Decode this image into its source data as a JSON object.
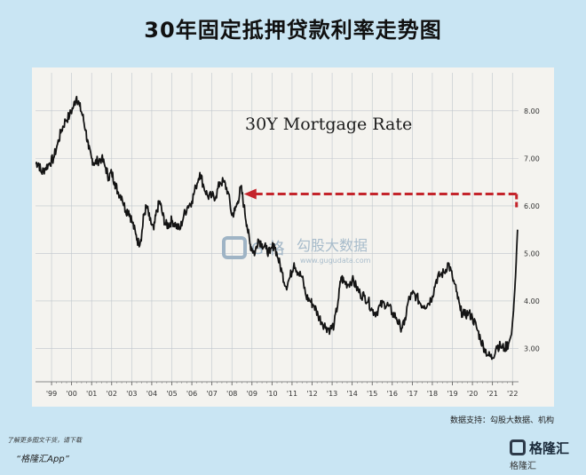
{
  "page": {
    "title": "30年固定抵押贷款利率走势图",
    "source": "数据支持：勾股大数据、机构",
    "footer_hint": "了解更多图文干货，请下载",
    "footer_app": "“格隆汇App”",
    "brand_name": "格隆汇",
    "brand_sub": "格隆汇"
  },
  "watermark": {
    "text": "勾股大数据",
    "sub": "www.gugudata.com",
    "mark": "G 格"
  },
  "colors": {
    "background": "#c9e5f3",
    "panel": "#f4f3ef",
    "line": "#141414",
    "arrow": "#c4242b",
    "grid": "#bfc6cc"
  },
  "chart_data": {
    "type": "line",
    "title": "30Y Mortgage Rate",
    "xlabel": "",
    "ylabel": "",
    "x_tick_labels": [
      "'99",
      "'00",
      "'01",
      "'02",
      "'03",
      "'04",
      "'05",
      "'06",
      "'07",
      "'08",
      "'09",
      "'10",
      "'11",
      "'12",
      "'13",
      "'14",
      "'15",
      "'16",
      "'17",
      "'18",
      "'19",
      "'20",
      "'21",
      "'22"
    ],
    "y_tick_labels": [
      "3.00",
      "4.00",
      "5.00",
      "6.00",
      "7.00",
      "8.00"
    ],
    "xlim": [
      1998.2,
      2022.3
    ],
    "ylim": [
      2.3,
      8.8
    ],
    "grid": true,
    "y_axis_side": "right",
    "series": [
      {
        "x": [
          1998.2,
          1998.35,
          1998.5,
          1998.7,
          1998.9,
          1999.1,
          1999.3,
          1999.5,
          1999.7,
          1999.9,
          2000.1,
          2000.25,
          2000.4,
          2000.55,
          2000.7,
          2000.85,
          2001.0,
          2001.15,
          2001.3,
          2001.5,
          2001.7,
          2001.85,
          2002.0,
          2002.15,
          2002.3,
          2002.5,
          2002.7,
          2002.85,
          2003.0,
          2003.2,
          2003.35,
          2003.5,
          2003.6,
          2003.75,
          2003.9,
          2004.1,
          2004.25,
          2004.4,
          2004.55,
          2004.7,
          2004.85,
          2005.0,
          2005.2,
          2005.4,
          2005.6,
          2005.8,
          2006.0,
          2006.2,
          2006.4,
          2006.6,
          2006.8,
          2007.0,
          2007.2,
          2007.4,
          2007.6,
          2007.8,
          2008.0,
          2008.15,
          2008.3,
          2008.45,
          2008.6,
          2008.75,
          2008.9,
          2009.0,
          2009.15,
          2009.3,
          2009.5,
          2009.7,
          2009.9,
          2010.1,
          2010.3,
          2010.5,
          2010.7,
          2010.9,
          2011.1,
          2011.3,
          2011.5,
          2011.7,
          2011.9,
          2012.1,
          2012.3,
          2012.5,
          2012.7,
          2012.9,
          2013.1,
          2013.3,
          2013.45,
          2013.6,
          2013.8,
          2014.0,
          2014.2,
          2014.4,
          2014.6,
          2014.8,
          2015.0,
          2015.2,
          2015.4,
          2015.6,
          2015.8,
          2016.0,
          2016.2,
          2016.4,
          2016.6,
          2016.8,
          2017.0,
          2017.2,
          2017.4,
          2017.6,
          2017.8,
          2018.0,
          2018.2,
          2018.4,
          2018.6,
          2018.8,
          2019.0,
          2019.2,
          2019.4,
          2019.6,
          2019.8,
          2020.0,
          2020.2,
          2020.4,
          2020.6,
          2020.8,
          2021.0,
          2021.2,
          2021.4,
          2021.6,
          2021.8,
          2021.95,
          2022.05,
          2022.15,
          2022.25
        ],
        "y": [
          6.9,
          6.9,
          6.7,
          6.8,
          6.9,
          7.0,
          7.3,
          7.6,
          7.8,
          7.9,
          8.1,
          8.3,
          8.1,
          7.9,
          7.6,
          7.2,
          7.0,
          6.9,
          6.95,
          7.0,
          6.8,
          6.6,
          6.7,
          6.5,
          6.3,
          6.2,
          5.9,
          5.9,
          5.7,
          5.4,
          5.2,
          5.4,
          5.8,
          6.0,
          5.7,
          5.5,
          5.9,
          6.1,
          5.8,
          5.6,
          5.6,
          5.7,
          5.6,
          5.5,
          5.8,
          6.0,
          6.1,
          6.4,
          6.7,
          6.4,
          6.2,
          6.2,
          6.2,
          6.5,
          6.5,
          6.3,
          5.8,
          5.9,
          6.1,
          6.4,
          6.0,
          5.6,
          5.2,
          5.1,
          5.0,
          5.3,
          5.2,
          5.1,
          5.0,
          5.2,
          4.9,
          4.6,
          4.3,
          4.5,
          4.8,
          4.6,
          4.5,
          4.1,
          4.0,
          3.9,
          3.7,
          3.55,
          3.45,
          3.4,
          3.5,
          4.0,
          4.5,
          4.4,
          4.35,
          4.45,
          4.3,
          4.15,
          4.1,
          4.0,
          3.8,
          3.75,
          3.9,
          3.95,
          3.9,
          3.75,
          3.65,
          3.45,
          3.5,
          4.0,
          4.15,
          4.1,
          3.95,
          3.9,
          3.95,
          4.1,
          4.45,
          4.55,
          4.6,
          4.8,
          4.5,
          4.2,
          3.8,
          3.7,
          3.75,
          3.65,
          3.45,
          3.2,
          3.0,
          2.85,
          2.8,
          3.05,
          3.05,
          3.0,
          3.1,
          3.3,
          3.8,
          4.5,
          5.5
        ]
      }
    ],
    "annotations": [
      "30Y Mortgage Rate"
    ],
    "arrow": {
      "from": {
        "x": 2022.2,
        "y": 6.25
      },
      "to": {
        "x": 2008.6,
        "y": 6.25
      }
    }
  }
}
